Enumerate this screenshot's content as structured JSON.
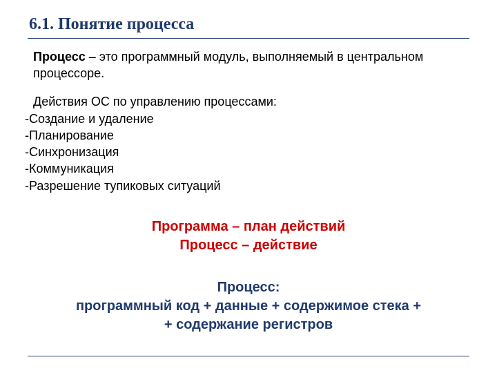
{
  "title": "6.1. Понятие процесса",
  "definition": {
    "term": "Процесс",
    "rest": " – это программный модуль, выполняемый в центральном процессоре."
  },
  "actions_intro": " Действия ОС по управлению процессами:",
  "actions": [
    "Создание и удаление",
    "Планирование",
    "Синхронизация",
    "Коммуникация",
    "Разрешение тупиковых ситуаций"
  ],
  "red_block": {
    "line1": "Программа – план действий",
    "line2": "Процесс – действие"
  },
  "blue_block": {
    "line1": "Процесс:",
    "line2": "программный код + данные + содержимое стека +",
    "line3": "+ содержание регистров"
  },
  "colors": {
    "title_color": "#1f3a6b",
    "text_color": "#000000",
    "red": "#cc0000",
    "blue": "#1f3a6b",
    "background": "#ffffff"
  },
  "fonts": {
    "title_family": "Georgia serif",
    "title_size_pt": 18,
    "body_size_pt": 14,
    "highlight_size_pt": 15
  }
}
